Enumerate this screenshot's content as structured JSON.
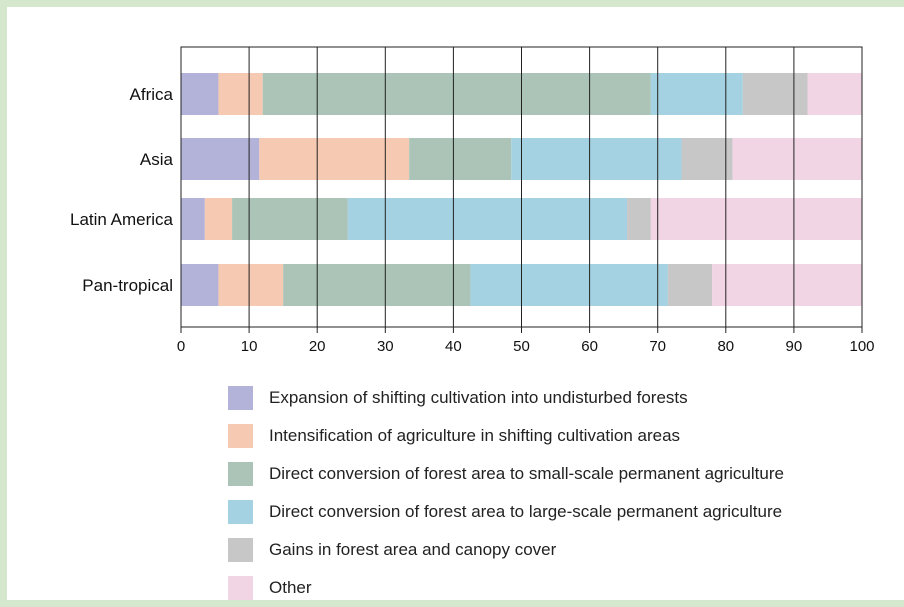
{
  "chart_data": {
    "type": "bar",
    "orientation": "horizontal",
    "stacked": true,
    "categories": [
      "Africa",
      "Asia",
      "Latin America",
      "Pan-tropical"
    ],
    "series": [
      {
        "name": "Expansion of shifting cultivation into undisturbed forests",
        "color": "#b3b3d9",
        "values": [
          5.5,
          11.5,
          3.5,
          5.5
        ]
      },
      {
        "name": "Intensification of agriculture in shifting cultivation areas",
        "color": "#f6c9b2",
        "values": [
          6.5,
          22.0,
          4.0,
          9.5
        ]
      },
      {
        "name": "Direct conversion of forest area to small-scale permanent agriculture",
        "color": "#abc4b7",
        "values": [
          57.0,
          15.0,
          17.0,
          27.5
        ]
      },
      {
        "name": "Direct conversion of forest area to large-scale permanent agriculture",
        "color": "#a5d2e2",
        "values": [
          13.5,
          25.0,
          41.0,
          29.0
        ]
      },
      {
        "name": "Gains in forest area and canopy cover",
        "color": "#c7c7c7",
        "values": [
          9.5,
          7.5,
          3.5,
          6.5
        ]
      },
      {
        "name": "Other",
        "color": "#f1d5e4",
        "values": [
          8.0,
          19.0,
          31.0,
          22.0
        ]
      }
    ],
    "xlim": [
      0,
      100
    ],
    "xticks": [
      "0",
      "10",
      "20",
      "30",
      "40",
      "50",
      "60",
      "70",
      "80",
      "90",
      "100"
    ],
    "grid": true,
    "legend_position": "bottom"
  }
}
